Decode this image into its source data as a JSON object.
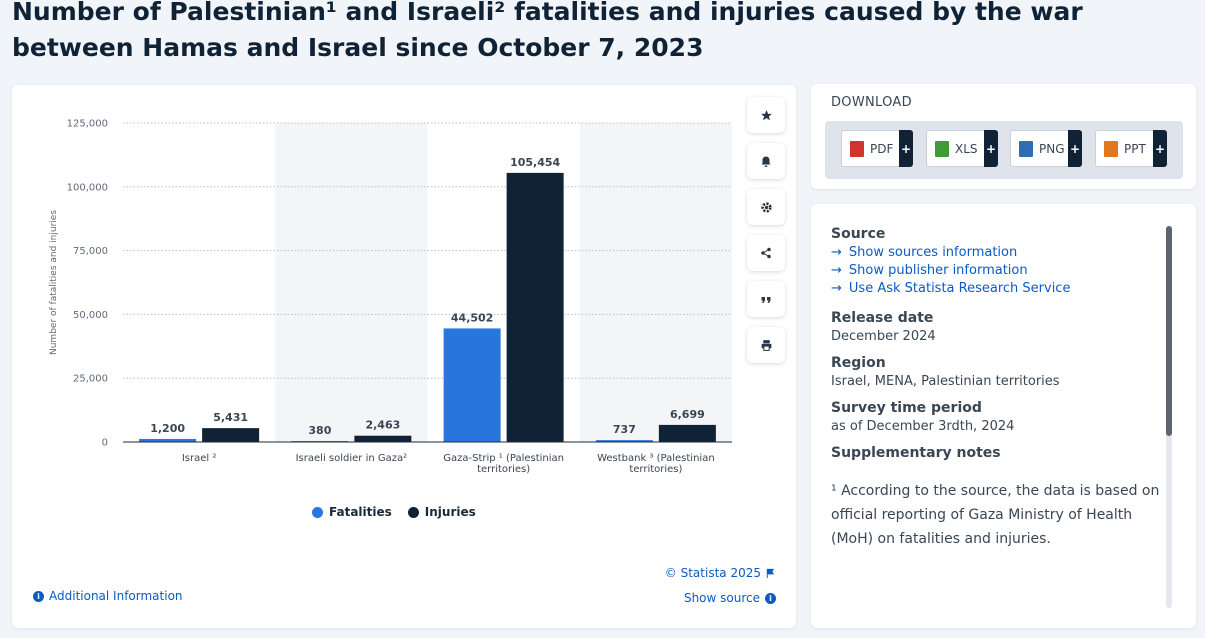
{
  "title": "Number of Palestinian¹ and Israeli² fatalities and injuries caused by the war between Hamas and Israel since October 7, 2023",
  "chart_data": {
    "type": "bar",
    "title": "Number of Palestinian¹ and Israeli² fatalities and injuries caused by the war between Hamas and Israel since October 7, 2023",
    "xlabel": "",
    "ylabel": "Number of fatalities and injuries",
    "ylim": [
      0,
      125000
    ],
    "yticks": [
      0,
      25000,
      50000,
      75000,
      100000,
      125000
    ],
    "ytick_labels": [
      "0",
      "25,000",
      "50,000",
      "75,000",
      "100,000",
      "125,000"
    ],
    "categories": [
      "Israel ²",
      "Israeli soldier in Gaza²",
      "Gaza-Strip ¹ (Palestinian territories)",
      "Westbank ³ (Palestinian territories)"
    ],
    "series": [
      {
        "name": "Fatalities",
        "color": "#2876dd",
        "values": [
          1200,
          380,
          44502,
          737
        ],
        "labels": [
          "1,200",
          "380",
          "44,502",
          "737"
        ]
      },
      {
        "name": "Injuries",
        "color": "#0f2236",
        "values": [
          5431,
          2463,
          105454,
          6699
        ],
        "labels": [
          "5,431",
          "2,463",
          "105,454",
          "6,699"
        ]
      }
    ],
    "grid": true,
    "legend": "bottom-center"
  },
  "toolbar": {
    "icons": [
      "star-icon",
      "bell-icon",
      "gear-icon",
      "share-icon",
      "quote-icon",
      "print-icon"
    ]
  },
  "footer": {
    "additional_info": "Additional Information",
    "copyright": "© Statista 2025",
    "show_source": "Show source"
  },
  "download": {
    "heading": "DOWNLOAD",
    "buttons": [
      {
        "label": "PDF",
        "color": "#d0342c"
      },
      {
        "label": "XLS",
        "color": "#3f9c35"
      },
      {
        "label": "PNG",
        "color": "#2f6db5"
      },
      {
        "label": "PPT",
        "color": "#e0781d"
      }
    ]
  },
  "info": {
    "source_heading": "Source",
    "source_links": [
      "Show sources information",
      "Show publisher information",
      "Use Ask Statista Research Service"
    ],
    "release_heading": "Release date",
    "release_value": "December 2024",
    "region_heading": "Region",
    "region_value": "Israel, MENA, Palestinian territories",
    "survey_heading": "Survey time period",
    "survey_value": "as of December 3rdth, 2024",
    "notes_heading": "Supplementary notes",
    "note_text": "¹ According to the source, the data is based on official reporting of Gaza Ministry of Health (MoH) on fatalities and injuries."
  }
}
